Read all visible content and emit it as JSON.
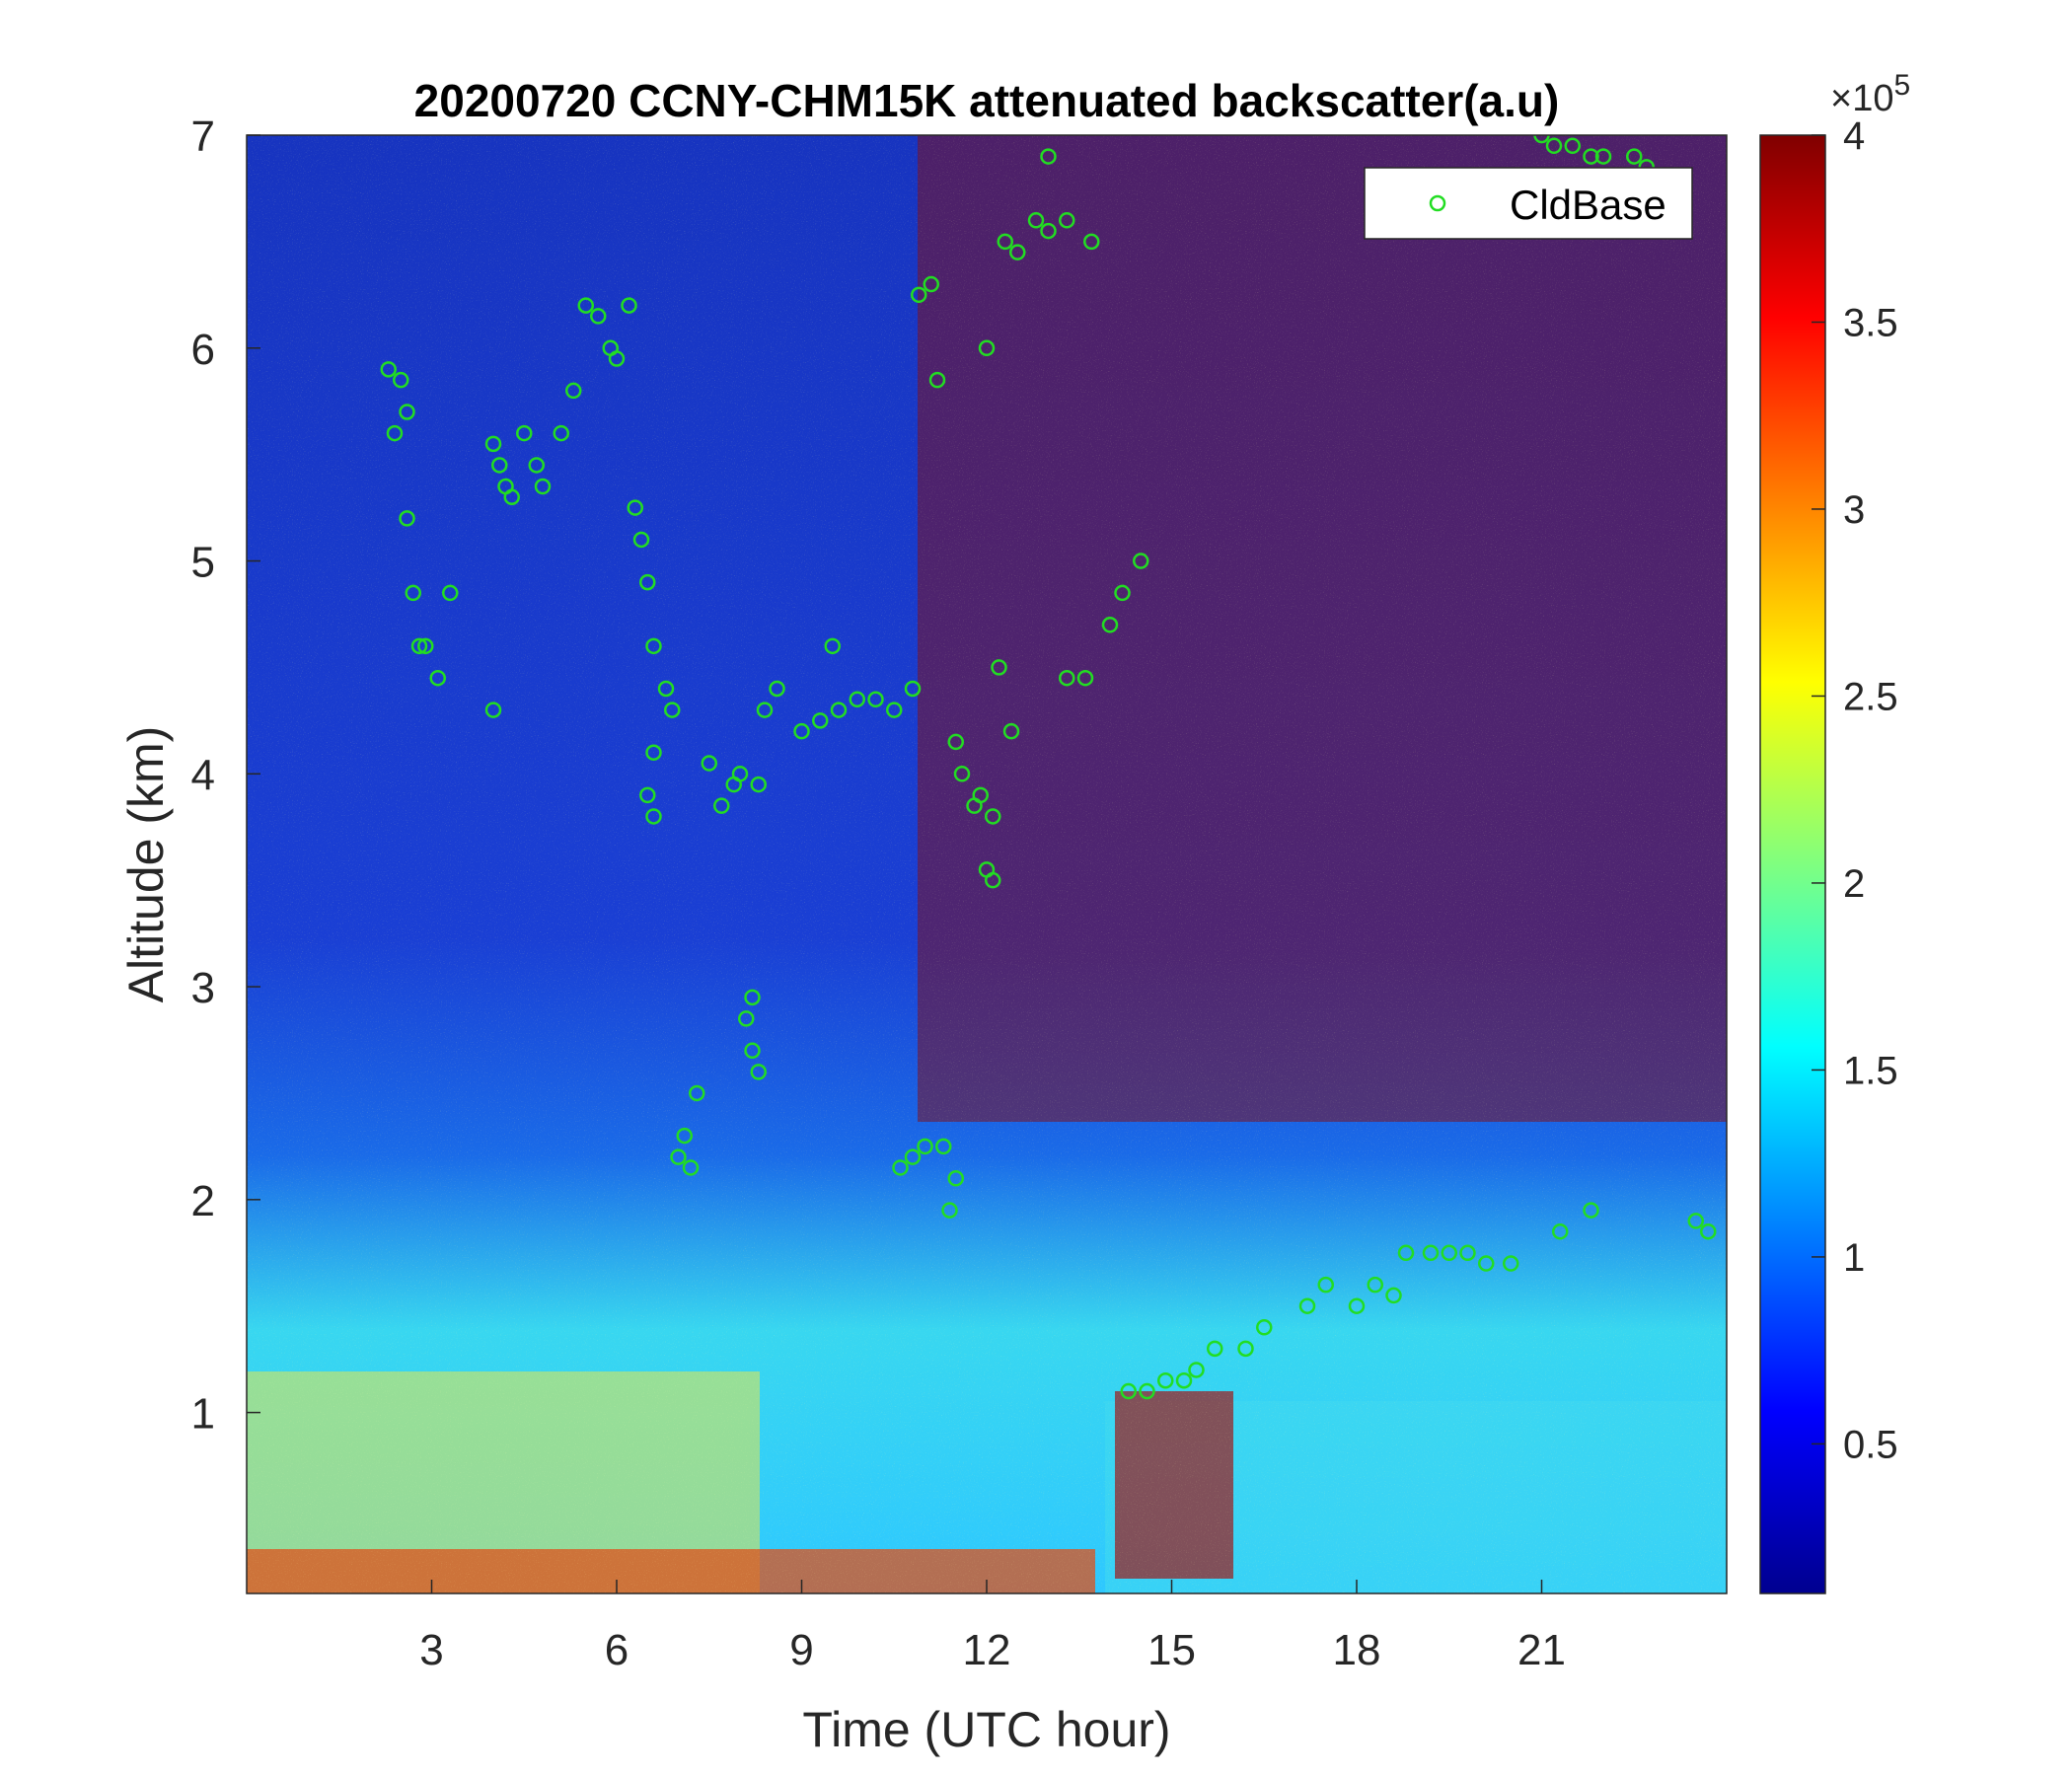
{
  "chart_data": {
    "type": "heatmap",
    "title": "20200720 CCNY-CHM15K attenuated backscatter(a.u)",
    "xlabel": "Time (UTC hour)",
    "ylabel": "Altitude (km)",
    "xlim": [
      0,
      24
    ],
    "ylim": [
      0.15,
      7
    ],
    "xticks": [
      3,
      6,
      9,
      12,
      15,
      18,
      21
    ],
    "yticks": [
      1,
      2,
      3,
      4,
      5,
      6,
      7
    ],
    "colorbar": {
      "range": [
        0.1,
        4
      ],
      "ticks": [
        0.5,
        1,
        1.5,
        2,
        2.5,
        3,
        3.5,
        4
      ],
      "exponent_label": "×10",
      "exponent": "5",
      "colormap": "jet"
    },
    "legend": {
      "position": "top-right",
      "entries": [
        "CldBase"
      ]
    },
    "cloud_base_color": "#22dd22",
    "cloud_base": {
      "name": "CldBase",
      "points": [
        [
          2.3,
          5.9
        ],
        [
          2.5,
          5.85
        ],
        [
          2.4,
          5.6
        ],
        [
          2.6,
          5.7
        ],
        [
          2.6,
          5.2
        ],
        [
          2.7,
          4.85
        ],
        [
          2.8,
          4.6
        ],
        [
          2.9,
          4.6
        ],
        [
          3.1,
          4.45
        ],
        [
          3.3,
          4.85
        ],
        [
          4.0,
          4.3
        ],
        [
          4.0,
          5.55
        ],
        [
          4.1,
          5.45
        ],
        [
          4.2,
          5.35
        ],
        [
          4.3,
          5.3
        ],
        [
          4.5,
          5.6
        ],
        [
          4.7,
          5.45
        ],
        [
          4.8,
          5.35
        ],
        [
          5.1,
          5.6
        ],
        [
          5.3,
          5.8
        ],
        [
          5.5,
          6.2
        ],
        [
          5.7,
          6.15
        ],
        [
          5.9,
          6.0
        ],
        [
          6.0,
          5.95
        ],
        [
          6.2,
          6.2
        ],
        [
          6.3,
          5.25
        ],
        [
          6.4,
          5.1
        ],
        [
          6.5,
          4.9
        ],
        [
          6.6,
          4.6
        ],
        [
          6.8,
          4.4
        ],
        [
          6.9,
          4.3
        ],
        [
          6.5,
          3.9
        ],
        [
          6.6,
          4.1
        ],
        [
          6.6,
          3.8
        ],
        [
          7.0,
          2.2
        ],
        [
          7.1,
          2.3
        ],
        [
          7.2,
          2.15
        ],
        [
          7.3,
          2.5
        ],
        [
          7.5,
          4.05
        ],
        [
          7.7,
          3.85
        ],
        [
          7.9,
          3.95
        ],
        [
          8.0,
          4.0
        ],
        [
          8.3,
          3.95
        ],
        [
          8.4,
          4.3
        ],
        [
          8.6,
          4.4
        ],
        [
          8.2,
          2.95
        ],
        [
          8.1,
          2.85
        ],
        [
          8.2,
          2.7
        ],
        [
          8.3,
          2.6
        ],
        [
          9.0,
          4.2
        ],
        [
          9.3,
          4.25
        ],
        [
          9.6,
          4.3
        ],
        [
          9.9,
          4.35
        ],
        [
          10.2,
          4.35
        ],
        [
          10.5,
          4.3
        ],
        [
          10.8,
          4.4
        ],
        [
          9.5,
          4.6
        ],
        [
          10.6,
          2.15
        ],
        [
          10.8,
          2.2
        ],
        [
          11.0,
          2.25
        ],
        [
          11.3,
          2.25
        ],
        [
          11.4,
          1.95
        ],
        [
          11.5,
          2.1
        ],
        [
          10.9,
          6.25
        ],
        [
          11.1,
          6.3
        ],
        [
          11.2,
          5.85
        ],
        [
          11.6,
          4.0
        ],
        [
          11.8,
          3.85
        ],
        [
          11.9,
          3.9
        ],
        [
          12.1,
          3.8
        ],
        [
          12.0,
          3.55
        ],
        [
          12.1,
          3.5
        ],
        [
          11.5,
          4.15
        ],
        [
          12.4,
          4.2
        ],
        [
          12.3,
          6.5
        ],
        [
          12.5,
          6.45
        ],
        [
          12.8,
          6.6
        ],
        [
          13.0,
          6.55
        ],
        [
          13.3,
          6.6
        ],
        [
          13.0,
          6.9
        ],
        [
          13.7,
          6.5
        ],
        [
          12.0,
          6.0
        ],
        [
          13.3,
          4.45
        ],
        [
          13.6,
          4.45
        ],
        [
          14.0,
          4.7
        ],
        [
          14.2,
          4.85
        ],
        [
          14.5,
          5.0
        ],
        [
          12.2,
          4.5
        ],
        [
          14.3,
          1.1
        ],
        [
          14.6,
          1.1
        ],
        [
          14.9,
          1.15
        ],
        [
          15.2,
          1.15
        ],
        [
          15.4,
          1.2
        ],
        [
          15.7,
          1.3
        ],
        [
          16.2,
          1.3
        ],
        [
          16.5,
          1.4
        ],
        [
          17.2,
          1.5
        ],
        [
          17.5,
          1.6
        ],
        [
          18.0,
          1.5
        ],
        [
          18.3,
          1.6
        ],
        [
          18.6,
          1.55
        ],
        [
          18.8,
          1.75
        ],
        [
          19.2,
          1.75
        ],
        [
          19.5,
          1.75
        ],
        [
          19.8,
          1.75
        ],
        [
          20.1,
          1.7
        ],
        [
          20.5,
          1.7
        ],
        [
          21.3,
          1.85
        ],
        [
          21.8,
          1.95
        ],
        [
          23.5,
          1.9
        ],
        [
          23.7,
          1.85
        ],
        [
          21.0,
          7.0
        ],
        [
          21.2,
          6.95
        ],
        [
          21.5,
          6.95
        ],
        [
          21.8,
          6.9
        ],
        [
          22.0,
          6.9
        ],
        [
          22.5,
          6.9
        ],
        [
          22.7,
          6.85
        ]
      ]
    }
  }
}
